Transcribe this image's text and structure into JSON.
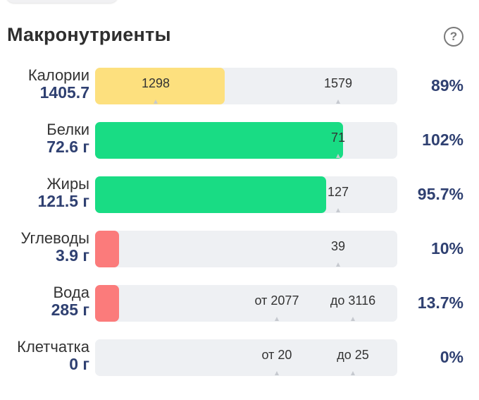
{
  "header": {
    "title": "Макронутриенты",
    "help_label": "?"
  },
  "colors": {
    "yellow": "#fde07e",
    "green": "#19dc84",
    "red": "#fb7b7b",
    "track": "#eef0f3"
  },
  "nutrients": [
    {
      "name": "Калории",
      "value": "1405.7",
      "percent": "89%",
      "fill_fraction": 0.43,
      "color": "#fde07e",
      "markers": [
        {
          "label": "1298",
          "at": 0.2
        },
        {
          "label": "1579",
          "at": 0.805
        }
      ]
    },
    {
      "name": "Белки",
      "value": "72.6 г",
      "percent": "102%",
      "fill_fraction": 0.82,
      "color": "#19dc84",
      "markers": [
        {
          "label": "71",
          "at": 0.805
        }
      ]
    },
    {
      "name": "Жиры",
      "value": "121.5 г",
      "percent": "95.7%",
      "fill_fraction": 0.765,
      "color": "#19dc84",
      "markers": [
        {
          "label": "127",
          "at": 0.805
        }
      ]
    },
    {
      "name": "Углеводы",
      "value": "3.9 г",
      "percent": "10%",
      "fill_fraction": 0.08,
      "color": "#fb7b7b",
      "markers": [
        {
          "label": "39",
          "at": 0.805
        }
      ]
    },
    {
      "name": "Вода",
      "value": "285 г",
      "percent": "13.7%",
      "fill_fraction": 0.08,
      "color": "#fb7b7b",
      "markers": [
        {
          "label": "от 2077",
          "at": 0.602
        },
        {
          "label": "до 3116",
          "at": 0.852
        }
      ]
    },
    {
      "name": "Клетчатка",
      "value": "0 г",
      "percent": "0%",
      "fill_fraction": 0,
      "color": "#fb7b7b",
      "markers": [
        {
          "label": "от 20",
          "at": 0.602
        },
        {
          "label": "до 25",
          "at": 0.852
        }
      ]
    }
  ]
}
